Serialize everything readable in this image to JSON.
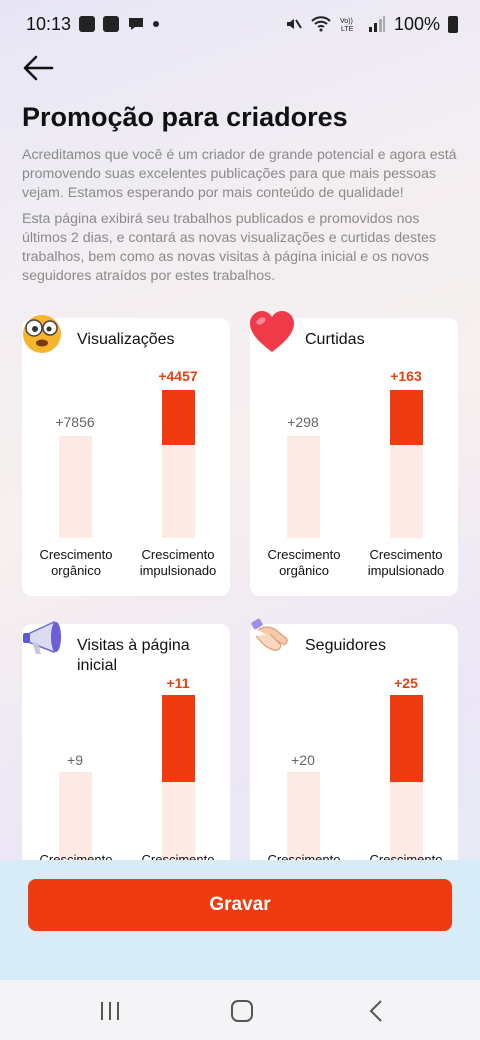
{
  "status_bar": {
    "time": "10:13",
    "battery": "100%",
    "icons": [
      "image-icon",
      "check-icon",
      "chat-icon",
      "dot-icon",
      "mute-icon",
      "wifi-icon",
      "volte-icon",
      "signal-icon",
      "battery-icon"
    ]
  },
  "header": {
    "title": "Promoção para criadores"
  },
  "description": {
    "p1": "Acreditamos que você é um criador de grande potencial e agora está promovendo suas excelentes publicações para que mais pessoas vejam. Estamos esperando por mais conteúdo de qualidade!",
    "p2": "Esta página exibirá seu trabalhos publicados e promovidos nos últimos 2 dias, e contará as novas visualizações e curtidas destes trabalhos, bem como as novas visitas à página inicial e os novos seguidores atraídos por estes trabalhos."
  },
  "cards": [
    {
      "title": "Visualizações",
      "icon": "shocked-face-icon",
      "organic_value": "+7856",
      "boost_value": "+4457",
      "organic_label": "Crescimento orgânico",
      "boost_label": "Crescimento impulsionado",
      "boost_fraction": 0.375
    },
    {
      "title": "Curtidas",
      "icon": "heart-icon",
      "organic_value": "+298",
      "boost_value": "+163",
      "organic_label": "Crescimento orgânico",
      "boost_label": "Crescimento impulsionado",
      "boost_fraction": 0.375
    },
    {
      "title": "Visitas à página inicial",
      "icon": "megaphone-icon",
      "organic_value": "+9",
      "boost_value": "+11",
      "organic_label": "Crescimento orgânico",
      "boost_label": "Crescimento impulsionado",
      "boost_fraction": 0.55
    },
    {
      "title": "Seguidores",
      "icon": "handshake-icon",
      "organic_value": "+20",
      "boost_value": "+25",
      "organic_label": "Crescimento orgânico",
      "boost_label": "Crescimento impulsionado",
      "boost_fraction": 0.55
    }
  ],
  "footer": {
    "record_label": "Gravar"
  },
  "colors": {
    "accent": "#ee3c10",
    "bar_light": "#fdeae4"
  }
}
